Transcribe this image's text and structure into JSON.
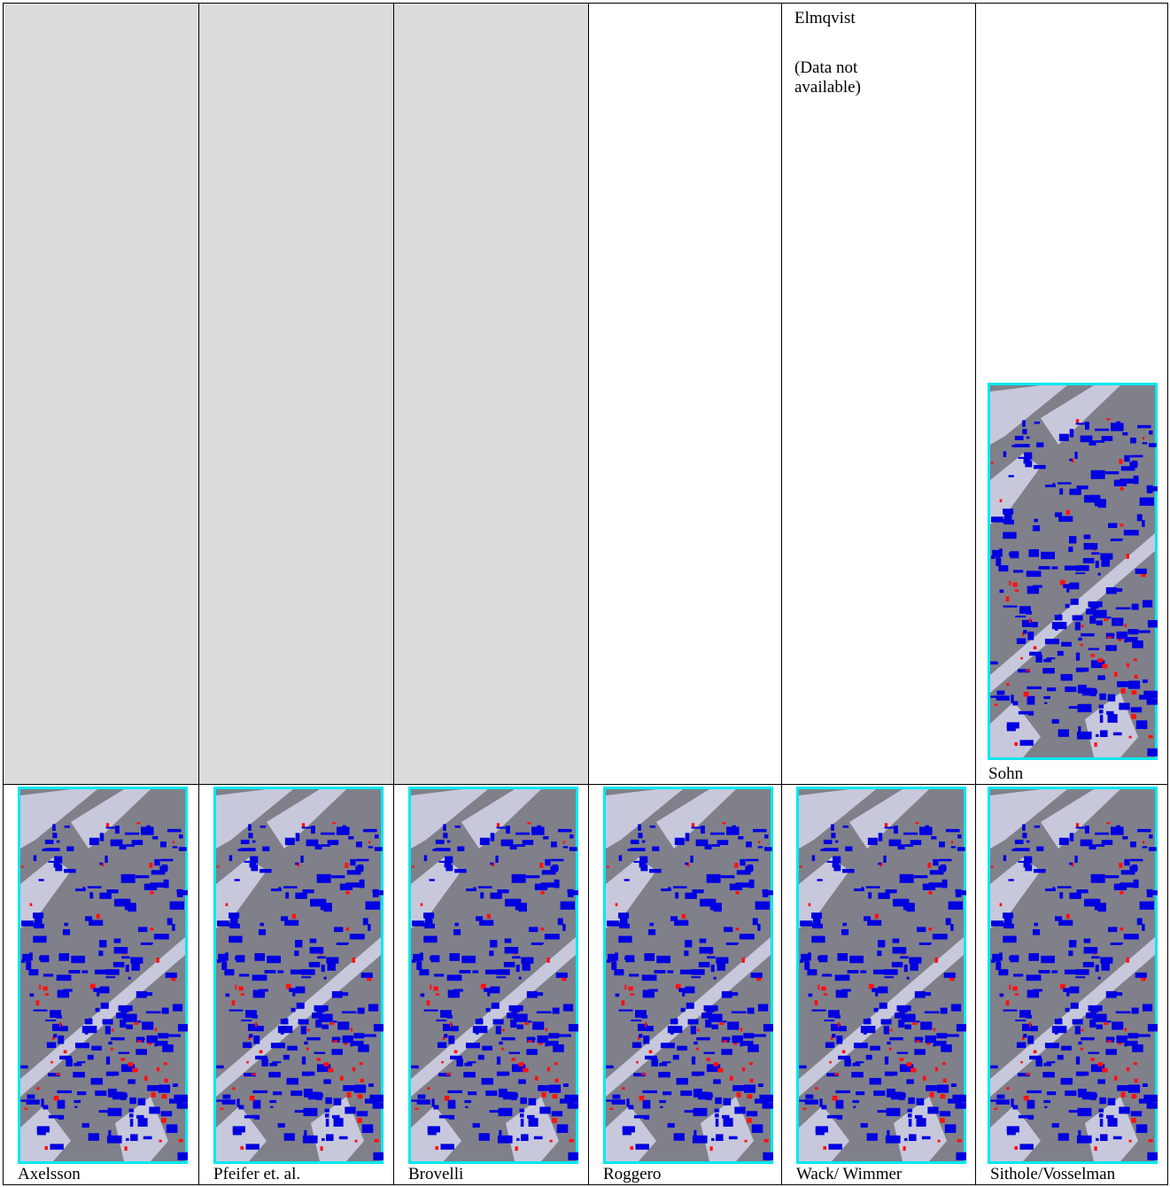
{
  "elmqvist": {
    "title": "Elmqvist",
    "note": "(Data not available)"
  },
  "sohn_caption": "Sohn",
  "captions": [
    "Axelsson",
    "Pfeifer et. al.",
    "Brovelli",
    "Roggero",
    "Wack/ Wimmer",
    "Sithole/Vosselman"
  ]
}
